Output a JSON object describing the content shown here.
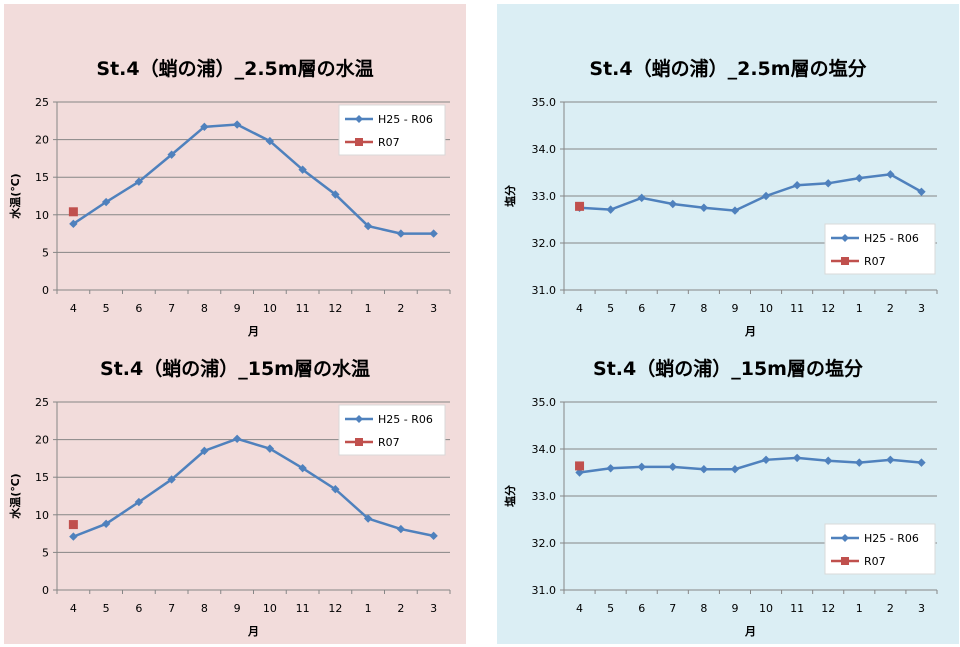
{
  "colors": {
    "series_line": "#4f81bd",
    "series_current": "#c0504d",
    "grid": "#868686",
    "left_bg": "#f2dcdb",
    "right_bg": "#dbeef4"
  },
  "chart_data": [
    {
      "type": "line",
      "title": "St.4（蛸の浦）_2.5m層の水温",
      "xlabel": "月",
      "ylabel": "水温(℃)",
      "categories": [
        "4",
        "5",
        "6",
        "7",
        "8",
        "9",
        "10",
        "11",
        "12",
        "1",
        "2",
        "3"
      ],
      "ylim": [
        0,
        25
      ],
      "yticks": [
        "0",
        "5",
        "10",
        "15",
        "20",
        "25"
      ],
      "grid": true,
      "legend_position": "top-right",
      "series": [
        {
          "name": "H25 - R06",
          "values": [
            8.8,
            11.7,
            14.4,
            18.0,
            21.7,
            22.0,
            19.8,
            16.0,
            12.7,
            8.5,
            7.5,
            7.5
          ]
        },
        {
          "name": "R07",
          "values": [
            10.4,
            null,
            null,
            null,
            null,
            null,
            null,
            null,
            null,
            null,
            null,
            null
          ]
        }
      ]
    },
    {
      "type": "line",
      "title": "St.4（蛸の浦）_2.5m層の塩分",
      "xlabel": "月",
      "ylabel": "塩分",
      "categories": [
        "4",
        "5",
        "6",
        "7",
        "8",
        "9",
        "10",
        "11",
        "12",
        "1",
        "2",
        "3"
      ],
      "ylim": [
        31.0,
        35.0
      ],
      "yticks": [
        "31.0",
        "32.0",
        "33.0",
        "34.0",
        "35.0"
      ],
      "grid": true,
      "legend_position": "bottom-right",
      "series": [
        {
          "name": "H25 - R06",
          "values": [
            32.75,
            32.71,
            32.96,
            32.83,
            32.75,
            32.69,
            33.0,
            33.23,
            33.27,
            33.38,
            33.46,
            33.09
          ]
        },
        {
          "name": "R07",
          "values": [
            32.78,
            null,
            null,
            null,
            null,
            null,
            null,
            null,
            null,
            null,
            null,
            null
          ]
        }
      ]
    },
    {
      "type": "line",
      "title": "St.4（蛸の浦）_15m層の水温",
      "xlabel": "月",
      "ylabel": "水温(℃)",
      "categories": [
        "4",
        "5",
        "6",
        "7",
        "8",
        "9",
        "10",
        "11",
        "12",
        "1",
        "2",
        "3"
      ],
      "ylim": [
        0,
        25
      ],
      "yticks": [
        "0",
        "5",
        "10",
        "15",
        "20",
        "25"
      ],
      "grid": true,
      "legend_position": "top-right",
      "series": [
        {
          "name": "H25 - R06",
          "values": [
            7.1,
            8.8,
            11.7,
            14.7,
            18.5,
            20.1,
            18.8,
            16.2,
            13.4,
            9.5,
            8.1,
            7.2
          ]
        },
        {
          "name": "R07",
          "values": [
            8.7,
            null,
            null,
            null,
            null,
            null,
            null,
            null,
            null,
            null,
            null,
            null
          ]
        }
      ]
    },
    {
      "type": "line",
      "title": "St.4（蛸の浦）_15m層の塩分",
      "xlabel": "月",
      "ylabel": "塩分",
      "categories": [
        "4",
        "5",
        "6",
        "7",
        "8",
        "9",
        "10",
        "11",
        "12",
        "1",
        "2",
        "3"
      ],
      "ylim": [
        31.0,
        35.0
      ],
      "yticks": [
        "31.0",
        "32.0",
        "33.0",
        "34.0",
        "35.0"
      ],
      "grid": true,
      "legend_position": "bottom-right",
      "series": [
        {
          "name": "H25 - R06",
          "values": [
            33.5,
            33.59,
            33.62,
            33.62,
            33.57,
            33.57,
            33.77,
            33.81,
            33.75,
            33.71,
            33.77,
            33.71
          ]
        },
        {
          "name": "R07",
          "values": [
            33.64,
            null,
            null,
            null,
            null,
            null,
            null,
            null,
            null,
            null,
            null,
            null
          ]
        }
      ]
    }
  ]
}
